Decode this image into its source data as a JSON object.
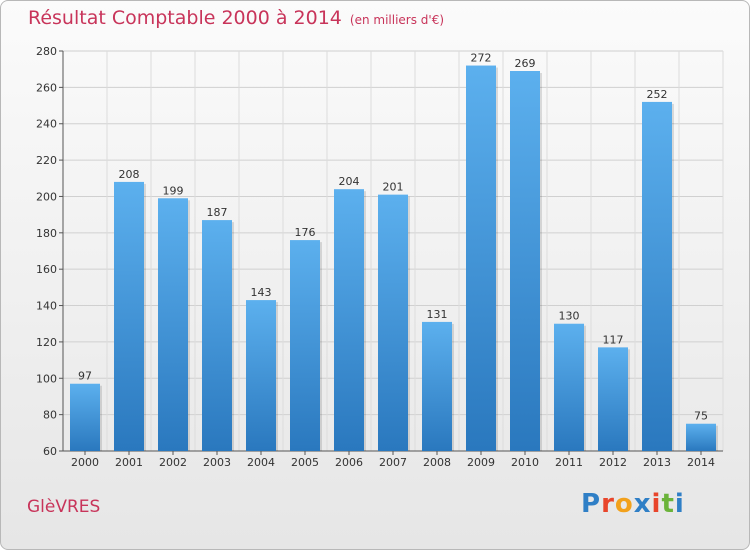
{
  "header": {
    "title": "Résultat Comptable 2000 à 2014",
    "subtitle": "(en milliers d'€)"
  },
  "footer": {
    "town": "GlèVRES",
    "logo_letters": [
      {
        "ch": "P",
        "color": "#2f7fc6"
      },
      {
        "ch": "r",
        "color": "#e8452b"
      },
      {
        "ch": "o",
        "color": "#f2a11c"
      },
      {
        "ch": "x",
        "color": "#2f7fc6"
      },
      {
        "ch": "i",
        "color": "#e8452b"
      },
      {
        "ch": "t",
        "color": "#6bb33a"
      },
      {
        "ch": "i",
        "color": "#2f7fc6"
      }
    ]
  },
  "chart_data": {
    "type": "bar",
    "title": "Résultat Comptable 2000 à 2014",
    "xlabel": "",
    "ylabel": "",
    "categories": [
      "2000",
      "2001",
      "2002",
      "2003",
      "2004",
      "2005",
      "2006",
      "2007",
      "2008",
      "2009",
      "2010",
      "2011",
      "2012",
      "2013",
      "2014"
    ],
    "values": [
      97,
      208,
      199,
      187,
      143,
      176,
      204,
      201,
      131,
      272,
      269,
      130,
      117,
      252,
      75
    ],
    "ylim": [
      60,
      280
    ],
    "yticks": [
      60,
      80,
      100,
      120,
      140,
      160,
      180,
      200,
      220,
      240,
      260,
      280
    ],
    "grid": true,
    "bar_color": "#3a8fd6"
  }
}
